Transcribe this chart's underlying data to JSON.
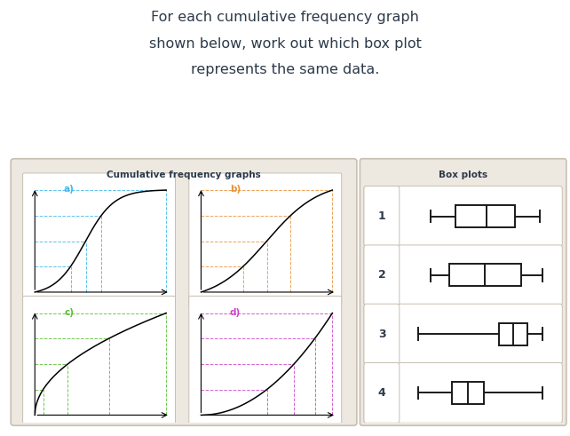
{
  "title_line1": "For each cumulative frequency graph",
  "title_line2": "shown below, work out which box plot",
  "title_line3": "represents the same data.",
  "title_color": "#2d3a4a",
  "bg_color": "#ede8e0",
  "white": "#ffffff",
  "cf_title": "Cumulative frequency graphs",
  "bp_title": "Box plots",
  "label_a": "a)",
  "label_b": "b)",
  "label_c": "c)",
  "label_d": "d)",
  "color_a": "#3db8e8",
  "color_b": "#e8923a",
  "color_c": "#5abf30",
  "color_d": "#cc44cc",
  "box_line_color": "#1a1a1a",
  "bp1": {
    "min": 0.18,
    "q1": 0.34,
    "med": 0.54,
    "q3": 0.72,
    "max": 0.88
  },
  "bp2": {
    "min": 0.18,
    "q1": 0.3,
    "med": 0.53,
    "q3": 0.76,
    "max": 0.9
  },
  "bp3": {
    "min": 0.1,
    "q1": 0.62,
    "med": 0.71,
    "q3": 0.8,
    "max": 0.9
  },
  "bp4": {
    "min": 0.1,
    "q1": 0.32,
    "med": 0.42,
    "q3": 0.52,
    "max": 0.9
  }
}
